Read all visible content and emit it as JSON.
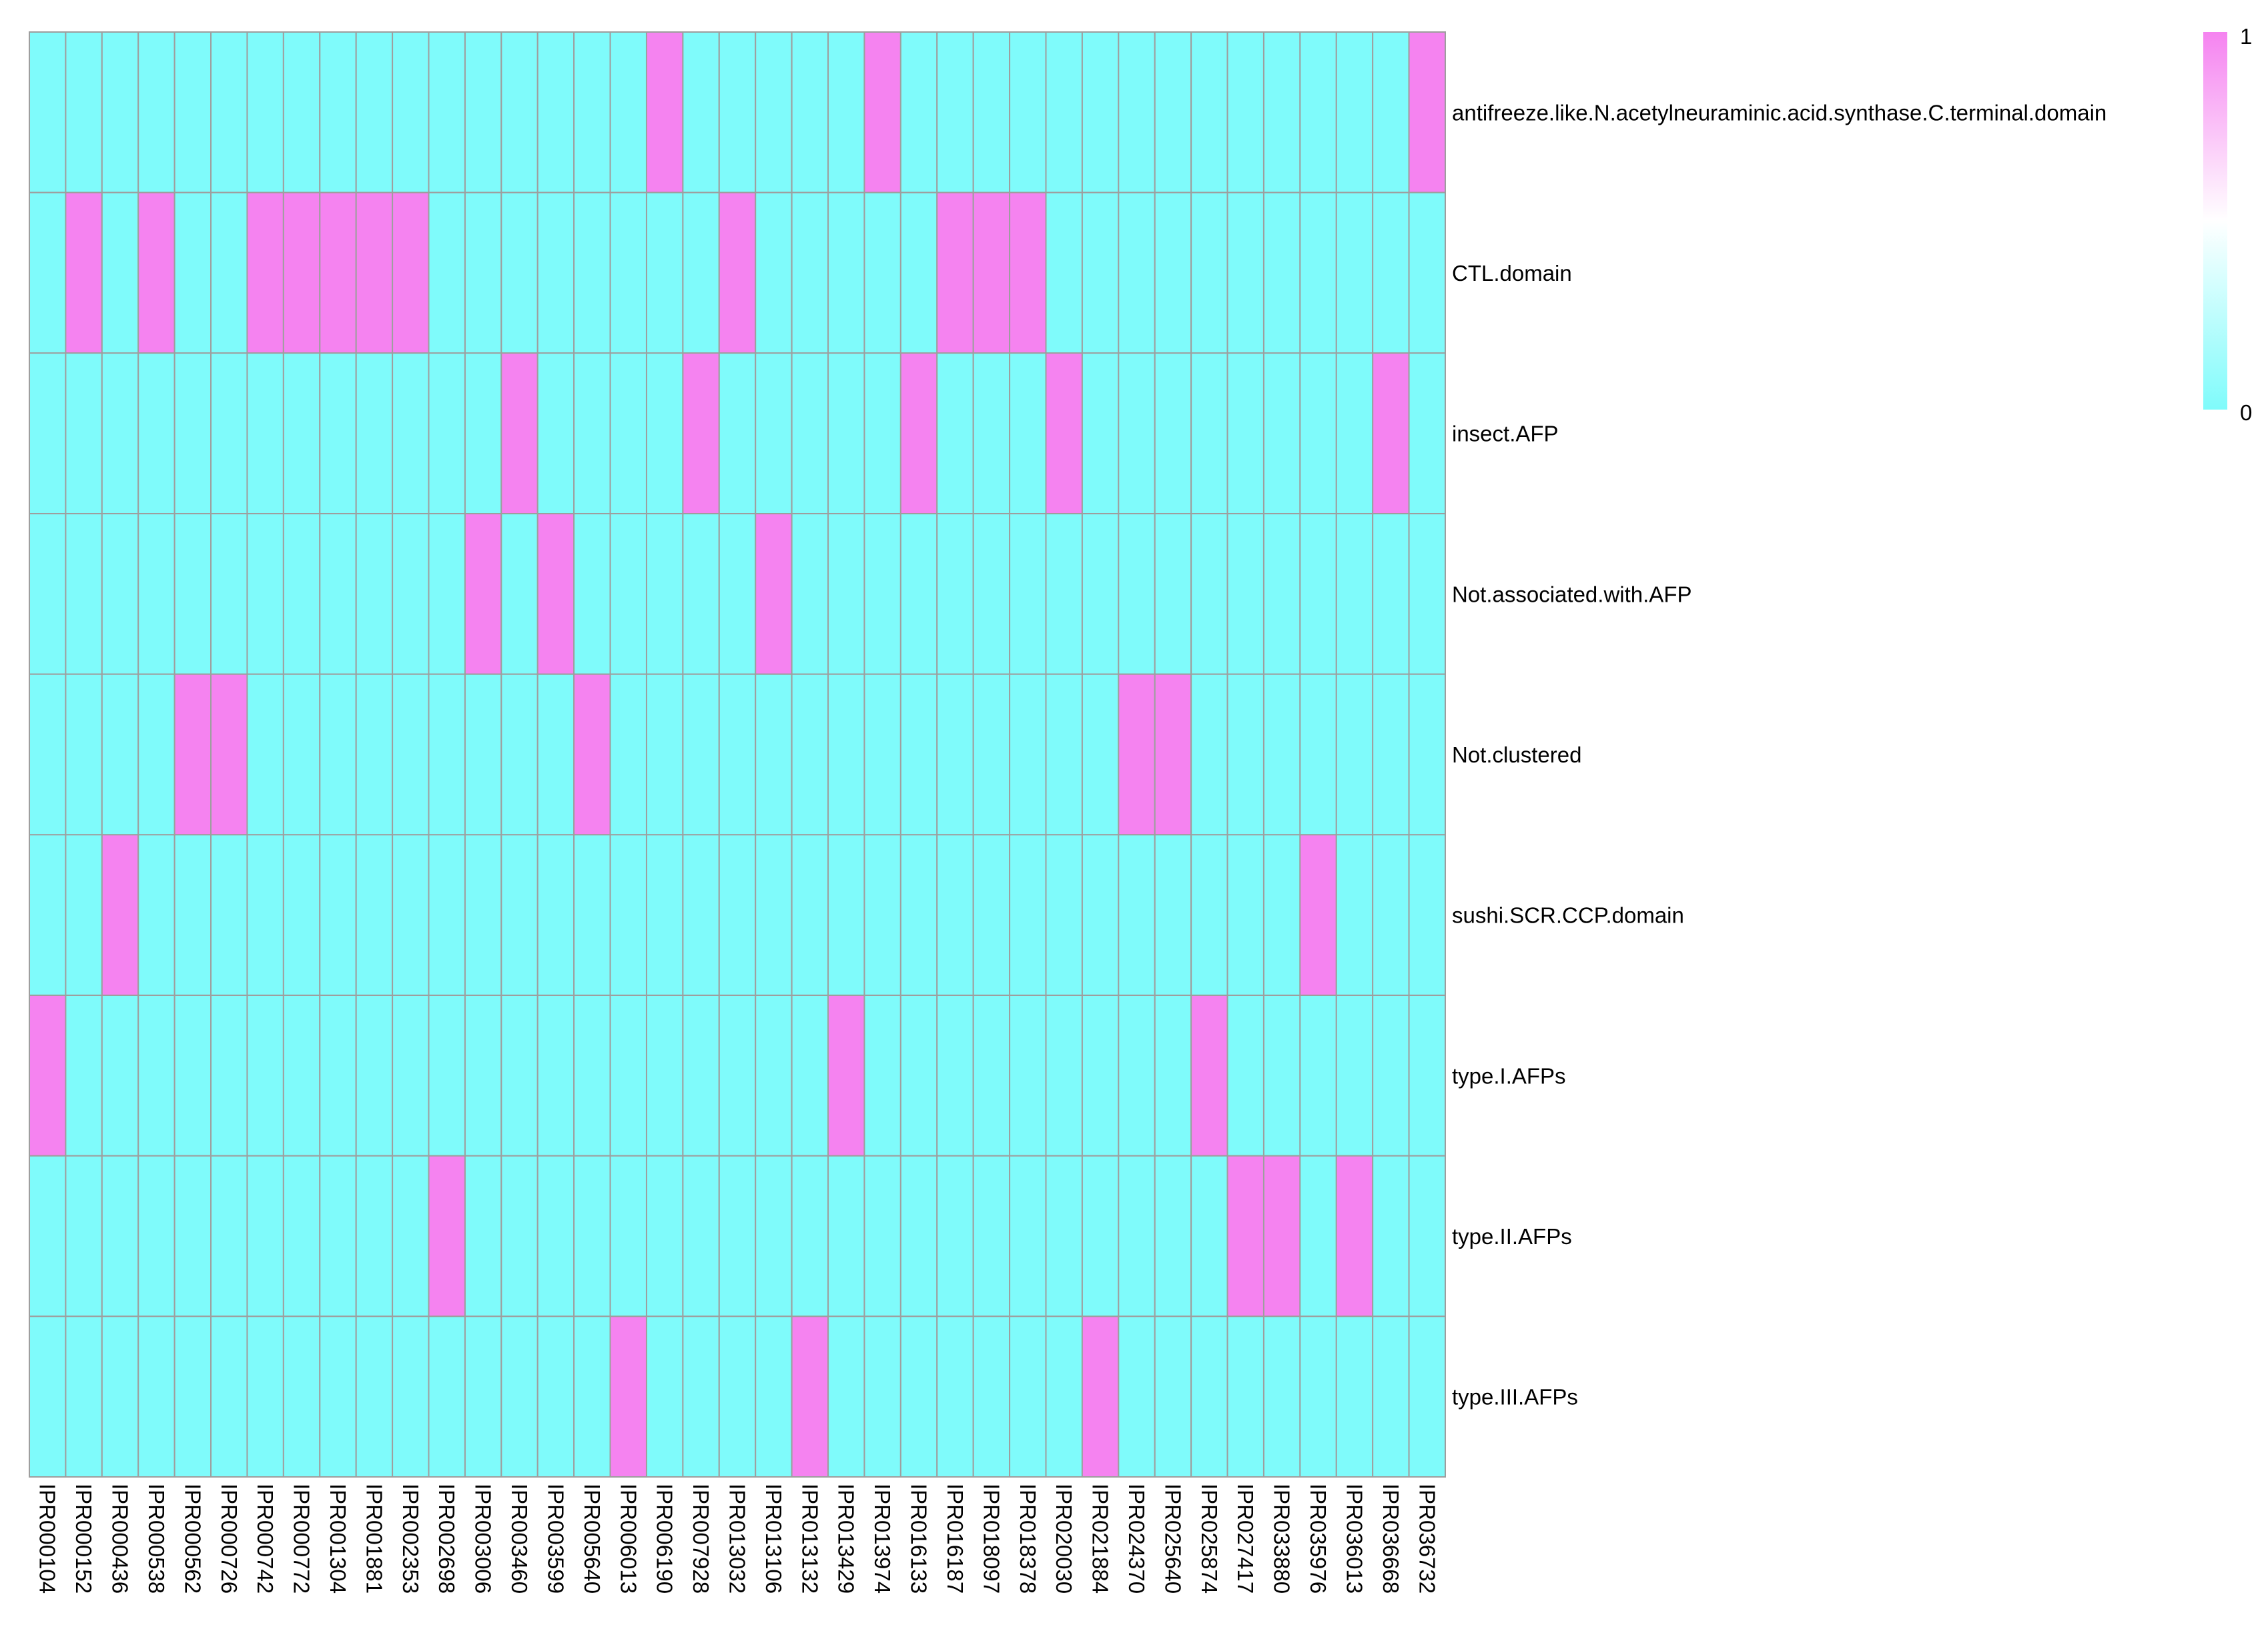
{
  "chart_data": {
    "type": "heatmap",
    "columns": [
      "IPR000104",
      "IPR000152",
      "IPR000436",
      "IPR000538",
      "IPR000562",
      "IPR000726",
      "IPR000742",
      "IPR000772",
      "IPR001304",
      "IPR001881",
      "IPR002353",
      "IPR002698",
      "IPR003006",
      "IPR003460",
      "IPR003599",
      "IPR005640",
      "IPR006013",
      "IPR006190",
      "IPR007928",
      "IPR013032",
      "IPR013106",
      "IPR013132",
      "IPR013429",
      "IPR013974",
      "IPR016133",
      "IPR016187",
      "IPR018097",
      "IPR018378",
      "IPR020030",
      "IPR021884",
      "IPR024370",
      "IPR025640",
      "IPR025874",
      "IPR027417",
      "IPR033880",
      "IPR035976",
      "IPR036013",
      "IPR036668",
      "IPR036732"
    ],
    "rows": [
      "antifreeze.like.N.acetylneuraminic.acid.synthase.C.terminal.domain",
      "CTL.domain",
      "insect.AFP",
      "Not.associated.with.AFP",
      "Not.clustered",
      "sushi.SCR.CCP.domain",
      "type.I.AFPs",
      "type.II.AFPs",
      "type.III.AFPs"
    ],
    "values": [
      [
        0,
        0,
        0,
        0,
        0,
        0,
        0,
        0,
        0,
        0,
        0,
        0,
        0,
        0,
        0,
        0,
        0,
        1,
        0,
        0,
        0,
        0,
        0,
        1,
        0,
        0,
        0,
        0,
        0,
        0,
        0,
        0,
        0,
        0,
        0,
        0,
        0,
        0,
        1
      ],
      [
        0,
        1,
        0,
        1,
        0,
        0,
        1,
        1,
        1,
        1,
        1,
        0,
        0,
        0,
        0,
        0,
        0,
        0,
        0,
        1,
        0,
        0,
        0,
        0,
        0,
        1,
        1,
        1,
        0,
        0,
        0,
        0,
        0,
        0,
        0,
        0,
        0,
        0,
        0
      ],
      [
        0,
        0,
        0,
        0,
        0,
        0,
        0,
        0,
        0,
        0,
        0,
        0,
        0,
        1,
        0,
        0,
        0,
        0,
        1,
        0,
        0,
        0,
        0,
        0,
        1,
        0,
        0,
        0,
        1,
        0,
        0,
        0,
        0,
        0,
        0,
        0,
        0,
        1,
        0
      ],
      [
        0,
        0,
        0,
        0,
        0,
        0,
        0,
        0,
        0,
        0,
        0,
        0,
        1,
        0,
        1,
        0,
        0,
        0,
        0,
        0,
        1,
        0,
        0,
        0,
        0,
        0,
        0,
        0,
        0,
        0,
        0,
        0,
        0,
        0,
        0,
        0,
        0,
        0,
        0
      ],
      [
        0,
        0,
        0,
        0,
        1,
        1,
        0,
        0,
        0,
        0,
        0,
        0,
        0,
        0,
        0,
        1,
        0,
        0,
        0,
        0,
        0,
        0,
        0,
        0,
        0,
        0,
        0,
        0,
        0,
        0,
        1,
        1,
        0,
        0,
        0,
        0,
        0,
        0,
        0
      ],
      [
        0,
        0,
        1,
        0,
        0,
        0,
        0,
        0,
        0,
        0,
        0,
        0,
        0,
        0,
        0,
        0,
        0,
        0,
        0,
        0,
        0,
        0,
        0,
        0,
        0,
        0,
        0,
        0,
        0,
        0,
        0,
        0,
        0,
        0,
        0,
        1,
        0,
        0,
        0
      ],
      [
        1,
        0,
        0,
        0,
        0,
        0,
        0,
        0,
        0,
        0,
        0,
        0,
        0,
        0,
        0,
        0,
        0,
        0,
        0,
        0,
        0,
        0,
        1,
        0,
        0,
        0,
        0,
        0,
        0,
        0,
        0,
        0,
        1,
        0,
        0,
        0,
        0,
        0,
        0
      ],
      [
        0,
        0,
        0,
        0,
        0,
        0,
        0,
        0,
        0,
        0,
        0,
        1,
        0,
        0,
        0,
        0,
        0,
        0,
        0,
        0,
        0,
        0,
        0,
        0,
        0,
        0,
        0,
        0,
        0,
        0,
        0,
        0,
        0,
        1,
        1,
        0,
        1,
        0,
        0
      ],
      [
        0,
        0,
        0,
        0,
        0,
        0,
        0,
        0,
        0,
        0,
        0,
        0,
        0,
        0,
        0,
        0,
        1,
        0,
        0,
        0,
        0,
        1,
        0,
        0,
        0,
        0,
        0,
        0,
        0,
        1,
        0,
        0,
        0,
        0,
        0,
        0,
        0,
        0,
        0
      ]
    ],
    "value_range": [
      0,
      1
    ],
    "legend": {
      "position": "top-right",
      "max_label": "1",
      "min_label": "0",
      "color_low": "#7ffbfb",
      "color_mid": "#ffffff",
      "color_high": "#f583f0"
    },
    "colors": {
      "low": "#7ffbfb",
      "high": "#f583f0",
      "grid": "#9e9e9e"
    },
    "title": "",
    "xlabel": "",
    "ylabel": ""
  }
}
